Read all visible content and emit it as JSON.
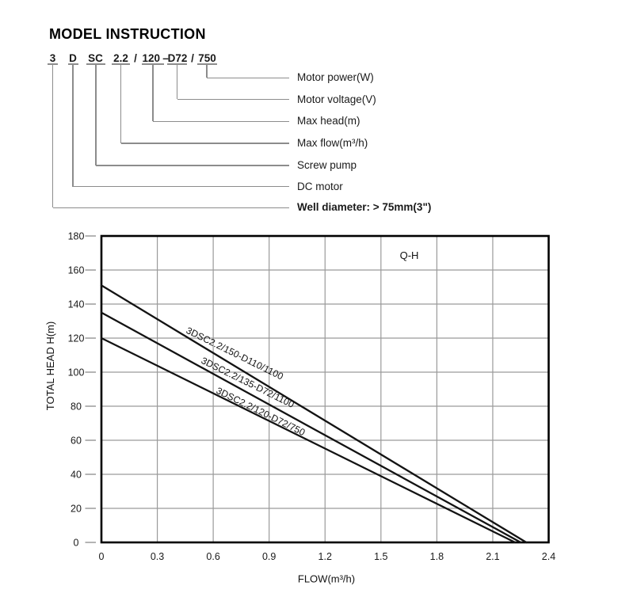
{
  "page_title": "MODEL INSTRUCTION",
  "model_code": {
    "segments": [
      {
        "text": "3"
      },
      {
        "text": "D"
      },
      {
        "text": "SC"
      },
      {
        "text": "2.2"
      },
      {
        "text": "/"
      },
      {
        "text": "120"
      },
      {
        "text": "–"
      },
      {
        "text": "D72"
      },
      {
        "text": "/"
      },
      {
        "text": "750"
      }
    ],
    "part_labels": [
      {
        "label": "Motor power(W)"
      },
      {
        "label": "Motor voltage(V)"
      },
      {
        "label": "Max head(m)"
      },
      {
        "label": "Max flow(m³/h)"
      },
      {
        "label": "Screw pump"
      },
      {
        "label": "DC motor"
      },
      {
        "label": "Well diameter: > 75mm(3\")"
      }
    ]
  },
  "chart_data": {
    "type": "line",
    "title": "Q-H",
    "xlabel": "FLOW(m³/h)",
    "ylabel": "TOTAL HEAD H(m)",
    "xlim": [
      0,
      2.4
    ],
    "ylim": [
      0,
      180
    ],
    "x_ticks": [
      0,
      0.3,
      0.6,
      0.9,
      1.2,
      1.5,
      1.8,
      2.1,
      2.4
    ],
    "y_ticks": [
      0,
      20,
      40,
      60,
      80,
      100,
      120,
      140,
      160,
      180
    ],
    "grid": true,
    "legend_position": "labels-on-curves",
    "series": [
      {
        "name": "3DSC2.2/150-D110/1100",
        "points": [
          [
            0,
            151
          ],
          [
            2.28,
            0
          ]
        ]
      },
      {
        "name": "3DSC2.2/135-D72/1100",
        "points": [
          [
            0,
            135
          ],
          [
            2.25,
            0
          ]
        ]
      },
      {
        "name": "3DSC2.2/120-D72/750",
        "points": [
          [
            0,
            120
          ],
          [
            2.22,
            0
          ]
        ]
      }
    ],
    "colors": {
      "curve": "#131313",
      "grid": "#9a9a9a",
      "axis": "#000000"
    }
  }
}
